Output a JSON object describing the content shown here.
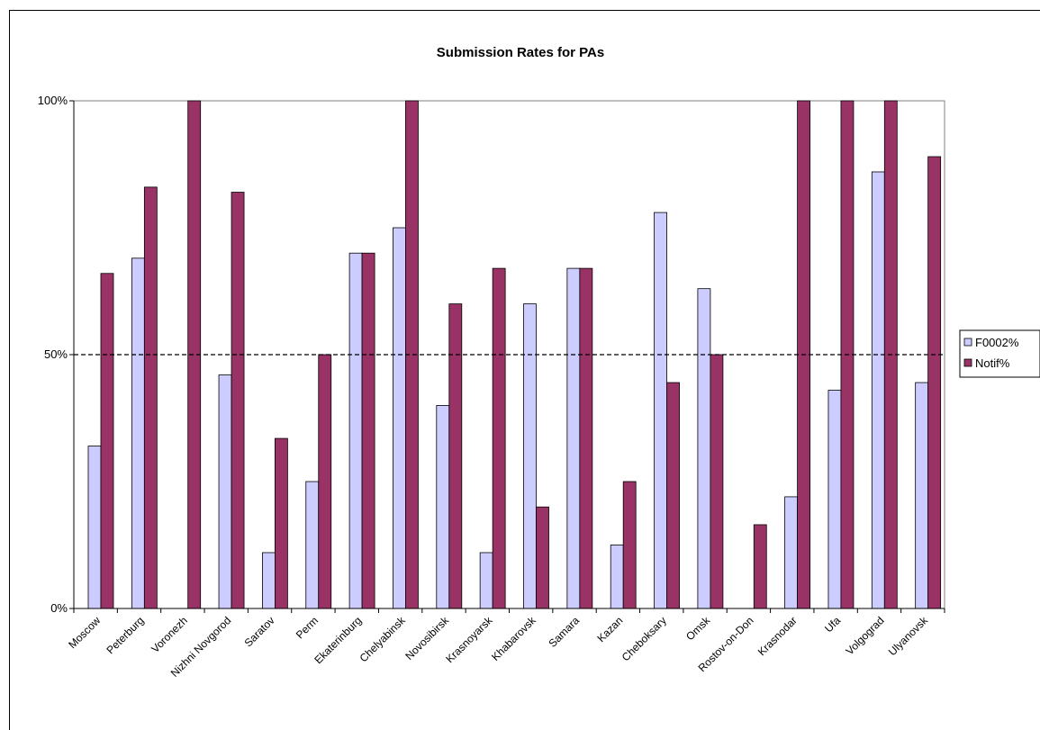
{
  "chart_data": {
    "type": "bar",
    "title": "Submission Rates for PAs",
    "xlabel": "",
    "ylabel": "",
    "ylim": [
      0,
      100
    ],
    "yticks": [
      "0%",
      "50%",
      "100%"
    ],
    "reference_line": {
      "value": 50,
      "style": "dashed"
    },
    "grid": false,
    "legend_position": "right",
    "categories": [
      "Moscow",
      "Peterburg",
      "Voronezh",
      "Nizhni Novgorod",
      "Saratov",
      "Perm",
      "Ekaterinburg",
      "Chelyabinsk",
      "Novosibirsk",
      "Krasnoyarsk",
      "Khabarovsk",
      "Samara",
      "Kazan",
      "Cheboksary",
      "Omsk",
      "Rostov-on-Don",
      "Krasnodar",
      "Ufa",
      "Volgograd",
      "Ulyanovsk"
    ],
    "series": [
      {
        "name": "F0002%",
        "color": "#ccccff",
        "values": [
          32,
          69,
          0,
          46,
          11,
          25,
          70,
          75,
          40,
          11,
          60,
          67,
          12.5,
          78,
          63,
          0,
          22,
          43,
          86,
          44.5
        ]
      },
      {
        "name": "Notif%",
        "color": "#993366",
        "values": [
          66,
          83,
          100,
          82,
          33.5,
          50,
          70,
          100,
          60,
          67,
          20,
          67,
          25,
          44.5,
          50,
          16.5,
          100,
          100,
          100,
          89
        ]
      }
    ]
  }
}
